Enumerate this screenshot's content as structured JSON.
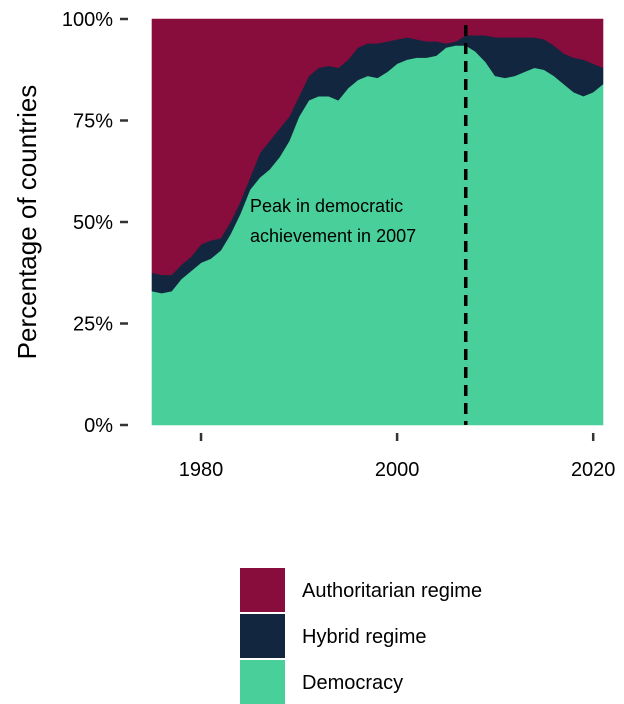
{
  "chart_data": {
    "type": "area",
    "stacked": true,
    "normalized": true,
    "title": "",
    "xlabel": "",
    "ylabel": "Percentage of countries",
    "xlim": [
      1975,
      2021
    ],
    "ylim": [
      0,
      1
    ],
    "x_ticks": [
      1980,
      2000,
      2020
    ],
    "y_ticks": [
      {
        "value": 0,
        "label": "0%"
      },
      {
        "value": 0.25,
        "label": "25%"
      },
      {
        "value": 0.5,
        "label": "50%"
      },
      {
        "value": 0.75,
        "label": "75%"
      },
      {
        "value": 1,
        "label": "100%"
      }
    ],
    "grid": false,
    "legend_position": "bottom",
    "x": [
      1975,
      1976,
      1977,
      1978,
      1979,
      1980,
      1981,
      1982,
      1983,
      1984,
      1985,
      1986,
      1987,
      1988,
      1989,
      1990,
      1991,
      1992,
      1993,
      1994,
      1995,
      1996,
      1997,
      1998,
      1999,
      2000,
      2001,
      2002,
      2003,
      2004,
      2005,
      2006,
      2007,
      2008,
      2009,
      2010,
      2011,
      2012,
      2013,
      2014,
      2015,
      2016,
      2017,
      2018,
      2019,
      2020,
      2021
    ],
    "series": [
      {
        "name": "Democracy",
        "color": "#48CF9A",
        "values": [
          0.33,
          0.325,
          0.33,
          0.36,
          0.38,
          0.4,
          0.41,
          0.43,
          0.47,
          0.52,
          0.58,
          0.61,
          0.63,
          0.66,
          0.7,
          0.76,
          0.8,
          0.81,
          0.81,
          0.8,
          0.83,
          0.85,
          0.86,
          0.855,
          0.87,
          0.89,
          0.9,
          0.905,
          0.905,
          0.91,
          0.93,
          0.935,
          0.935,
          0.92,
          0.895,
          0.86,
          0.855,
          0.86,
          0.87,
          0.88,
          0.875,
          0.86,
          0.84,
          0.82,
          0.81,
          0.82,
          0.84
        ]
      },
      {
        "name": "Hybrid regime",
        "color": "#13263F",
        "values": [
          0.045,
          0.045,
          0.04,
          0.035,
          0.035,
          0.045,
          0.045,
          0.03,
          0.03,
          0.03,
          0.03,
          0.06,
          0.07,
          0.07,
          0.06,
          0.05,
          0.06,
          0.07,
          0.075,
          0.08,
          0.07,
          0.08,
          0.08,
          0.085,
          0.075,
          0.06,
          0.055,
          0.045,
          0.04,
          0.035,
          0.01,
          0.01,
          0.025,
          0.04,
          0.065,
          0.095,
          0.1,
          0.095,
          0.085,
          0.075,
          0.075,
          0.075,
          0.075,
          0.085,
          0.09,
          0.07,
          0.04
        ]
      },
      {
        "name": "Authoritarian regime",
        "color": "#880C3C",
        "values": [
          0.625,
          0.63,
          0.63,
          0.605,
          0.585,
          0.555,
          0.545,
          0.54,
          0.5,
          0.45,
          0.39,
          0.33,
          0.3,
          0.27,
          0.24,
          0.19,
          0.14,
          0.12,
          0.115,
          0.12,
          0.1,
          0.07,
          0.06,
          0.06,
          0.055,
          0.05,
          0.045,
          0.05,
          0.055,
          0.055,
          0.06,
          0.055,
          0.04,
          0.04,
          0.04,
          0.045,
          0.045,
          0.045,
          0.045,
          0.045,
          0.05,
          0.065,
          0.085,
          0.095,
          0.1,
          0.11,
          0.12
        ]
      }
    ],
    "reference_line": {
      "x": 2007,
      "style": "dashed",
      "color": "#000000"
    },
    "annotations": [
      {
        "lines": [
          "Peak in democratic",
          "achievement in 2007"
        ],
        "x": 1985,
        "y": 0.53
      }
    ],
    "legend": [
      "Authoritarian regime",
      "Hybrid regime",
      "Democracy"
    ]
  }
}
